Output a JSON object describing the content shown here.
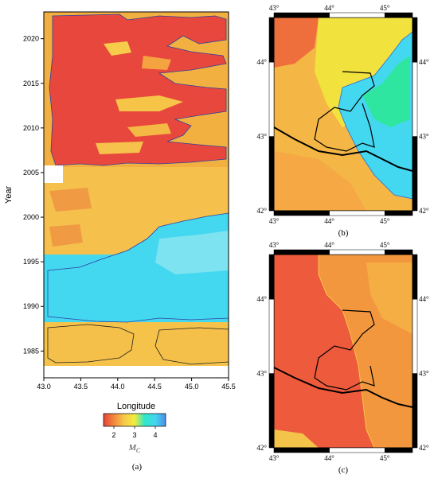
{
  "chart_data": [
    {
      "type": "heatmap",
      "panel": "(a)",
      "xlabel": "Longitude",
      "ylabel": "Year",
      "xlim": [
        43.0,
        45.5
      ],
      "ylim": [
        1982,
        2023
      ],
      "x_ticks": [
        "43.0",
        "43.5",
        "44.0",
        "44.5",
        "45.0",
        "45.5"
      ],
      "y_ticks": [
        "1985",
        "1990",
        "1995",
        "2000",
        "2005",
        "2010",
        "2015",
        "2020"
      ],
      "colorbar": {
        "label": "M",
        "label_subscript": "C",
        "ticks": [
          "2",
          "3",
          "4"
        ],
        "range": [
          1.5,
          4.5
        ],
        "colors": [
          "#e8423a",
          "#f08a3c",
          "#f7c84a",
          "#f2ec3c",
          "#2fe6c8",
          "#43d7f0",
          "#4a8fe8"
        ]
      },
      "regions": [
        {
          "years": [
            2005.5,
            2023
          ],
          "mc": 2.0
        },
        {
          "years": [
            1996,
            2005.5
          ],
          "mc": 2.6
        },
        {
          "years": [
            1992,
            1996
          ],
          "mc": 3.4
        },
        {
          "years": [
            1988,
            1992
          ],
          "mc": 3.5
        },
        {
          "years": [
            1982,
            1988
          ],
          "mc": 2.7
        }
      ]
    },
    {
      "type": "heatmap",
      "panel": "(b)",
      "x_ticks": [
        "43°",
        "44°",
        "45°"
      ],
      "y_ticks": [
        "42°",
        "43°",
        "44°"
      ],
      "xlim": [
        43,
        45.5
      ],
      "ylim": [
        42,
        44.6
      ]
    },
    {
      "type": "heatmap",
      "panel": "(c)",
      "x_ticks": [
        "43°",
        "44°",
        "45°"
      ],
      "y_ticks": [
        "42°",
        "43°",
        "44°"
      ],
      "xlim": [
        43,
        45.5
      ],
      "ylim": [
        42,
        44.6
      ]
    }
  ],
  "captions": {
    "a": "(a)",
    "b": "(b)",
    "c": "(c)"
  }
}
